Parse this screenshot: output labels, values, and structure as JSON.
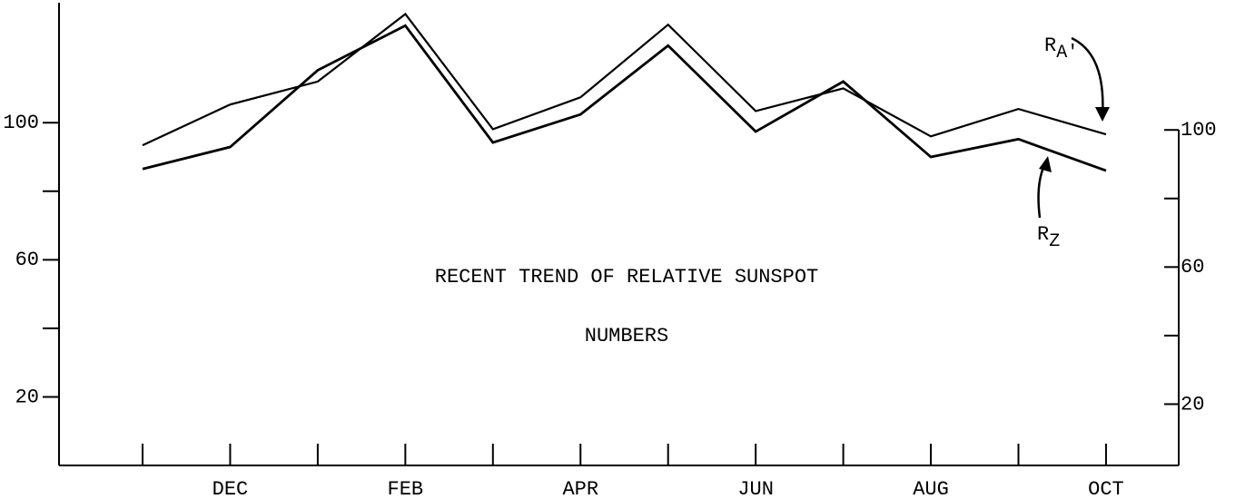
{
  "chart_data": {
    "type": "line",
    "title": [
      "RECENT TREND OF RELATIVE SUNSPOT",
      "NUMBERS"
    ],
    "categories": [
      null,
      "DEC",
      null,
      "FEB",
      null,
      "APR",
      null,
      "JUN",
      null,
      "AUG",
      null,
      "OCT"
    ],
    "series": [
      {
        "name": "RA'",
        "color": "#000000",
        "values": [
          93.4,
          105.3,
          112,
          131.7,
          98.1,
          107.4,
          128.6,
          103.4,
          110,
          96,
          104,
          96.6
        ]
      },
      {
        "name": "RZ",
        "color": "#000000",
        "values": [
          86.5,
          92.9,
          115.3,
          128.3,
          94.2,
          102.4,
          122.5,
          97.4,
          112,
          90,
          95.2,
          86
        ]
      }
    ],
    "ylim": [
      0,
      135
    ],
    "yticks": [
      20,
      60,
      100
    ],
    "yminorticks": [
      40,
      80
    ],
    "y2lim": [
      0,
      135
    ],
    "y2ticks": [
      20,
      60,
      100
    ],
    "y2minorticks": [
      40,
      80
    ],
    "grid": false
  }
}
